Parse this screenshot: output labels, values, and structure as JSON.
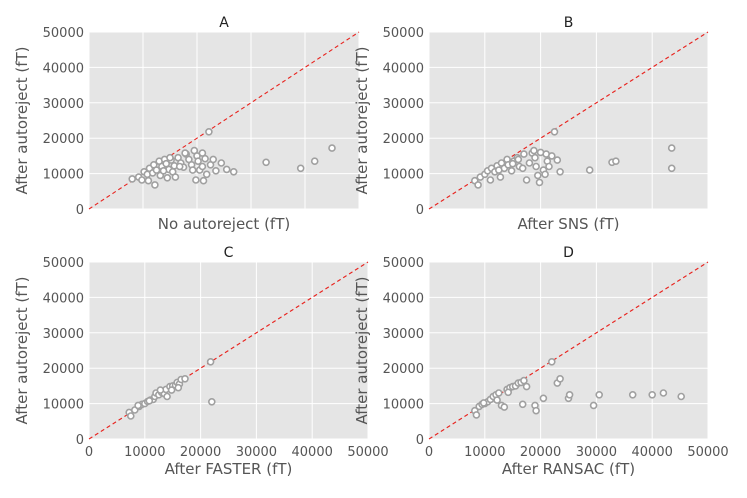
{
  "chart_data": [
    {
      "type": "scatter",
      "title": "A",
      "xlabel": "No autoreject (fT)",
      "ylabel": "After autoreject (fT)",
      "xlim": [
        0,
        50000
      ],
      "ylim": [
        0,
        50000
      ],
      "xticks": [
        0,
        10000,
        20000,
        30000,
        40000,
        50000
      ],
      "yticks": [
        "0",
        "10000",
        "20000",
        "30000",
        "40000",
        "50000"
      ],
      "show_xtick_labels": false,
      "show_ytick_labels": true,
      "reference_line": "y = x",
      "points": [
        [
          8000,
          8500
        ],
        [
          9200,
          9000
        ],
        [
          9800,
          8200
        ],
        [
          10200,
          10500
        ],
        [
          10800,
          9800
        ],
        [
          11200,
          11500
        ],
        [
          11000,
          8000
        ],
        [
          11800,
          10200
        ],
        [
          12000,
          12500
        ],
        [
          12500,
          11000
        ],
        [
          12200,
          6800
        ],
        [
          13000,
          13500
        ],
        [
          13500,
          12000
        ],
        [
          13200,
          9500
        ],
        [
          14000,
          14000
        ],
        [
          14300,
          12800
        ],
        [
          14800,
          11200
        ],
        [
          14500,
          8800
        ],
        [
          15200,
          13800
        ],
        [
          15800,
          12200
        ],
        [
          15500,
          10500
        ],
        [
          16000,
          9000
        ],
        [
          16500,
          14500
        ],
        [
          17000,
          13000
        ],
        [
          17500,
          11800
        ],
        [
          18000,
          15500
        ],
        [
          18500,
          14000
        ],
        [
          19000,
          12500
        ],
        [
          19500,
          16500
        ],
        [
          20000,
          15000
        ],
        [
          20200,
          13500
        ],
        [
          20500,
          11000
        ],
        [
          19800,
          8200
        ],
        [
          21000,
          15800
        ],
        [
          21500,
          14200
        ],
        [
          21000,
          12000
        ],
        [
          21800,
          9800
        ],
        [
          22200,
          21800
        ],
        [
          21200,
          8000
        ],
        [
          22500,
          12500
        ],
        [
          23000,
          14000
        ],
        [
          24500,
          13000
        ],
        [
          25500,
          11200
        ],
        [
          26800,
          10500
        ],
        [
          32800,
          13200
        ],
        [
          39200,
          11500
        ],
        [
          41800,
          13500
        ],
        [
          45000,
          17200
        ],
        [
          16800,
          12000
        ],
        [
          13800,
          10800
        ],
        [
          15000,
          14500
        ],
        [
          17800,
          15800
        ],
        [
          19200,
          11000
        ],
        [
          23500,
          10800
        ]
      ]
    },
    {
      "type": "scatter",
      "title": "B",
      "xlabel": "After SNS (fT)",
      "ylabel": "After autoreject (fT)",
      "xlim": [
        0,
        50000
      ],
      "ylim": [
        0,
        50000
      ],
      "xticks": [
        0,
        10000,
        20000,
        30000,
        40000,
        50000
      ],
      "yticks": [
        "0",
        "10000",
        "20000",
        "30000",
        "40000",
        "50000"
      ],
      "show_xtick_labels": false,
      "show_ytick_labels": true,
      "reference_line": "y = x",
      "points": [
        [
          8200,
          8000
        ],
        [
          8800,
          6800
        ],
        [
          9200,
          9000
        ],
        [
          10000,
          9800
        ],
        [
          10500,
          10800
        ],
        [
          11000,
          8200
        ],
        [
          11200,
          11500
        ],
        [
          11800,
          10500
        ],
        [
          12200,
          12200
        ],
        [
          12800,
          9000
        ],
        [
          13000,
          13000
        ],
        [
          13500,
          11500
        ],
        [
          14000,
          14000
        ],
        [
          14200,
          12500
        ],
        [
          14800,
          10800
        ],
        [
          15200,
          13500
        ],
        [
          15800,
          14500
        ],
        [
          16200,
          12000
        ],
        [
          16800,
          11500
        ],
        [
          17000,
          15500
        ],
        [
          17500,
          8200
        ],
        [
          18000,
          13000
        ],
        [
          18500,
          15800
        ],
        [
          19000,
          14500
        ],
        [
          19200,
          12000
        ],
        [
          19500,
          9500
        ],
        [
          19800,
          7500
        ],
        [
          20000,
          16000
        ],
        [
          20500,
          11000
        ],
        [
          21000,
          15500
        ],
        [
          21200,
          13500
        ],
        [
          21500,
          12000
        ],
        [
          22000,
          15000
        ],
        [
          22500,
          21800
        ],
        [
          23000,
          13800
        ],
        [
          23500,
          10500
        ],
        [
          28800,
          11000
        ],
        [
          32800,
          13200
        ],
        [
          33500,
          13500
        ],
        [
          43500,
          17200
        ],
        [
          43500,
          11500
        ],
        [
          16000,
          14000
        ],
        [
          12500,
          11000
        ],
        [
          15000,
          12800
        ],
        [
          18800,
          16500
        ],
        [
          20800,
          9800
        ]
      ]
    },
    {
      "type": "scatter",
      "title": "C",
      "xlabel": "After FASTER (fT)",
      "ylabel": "After autoreject (fT)",
      "xlim": [
        0,
        50000
      ],
      "ylim": [
        0,
        50000
      ],
      "xticks": [
        "0",
        "10000",
        "20000",
        "30000",
        "40000",
        "50000"
      ],
      "yticks": [
        "0",
        "10000",
        "20000",
        "30000",
        "40000",
        "50000"
      ],
      "show_xtick_labels": true,
      "show_ytick_labels": true,
      "reference_line": "y = x",
      "points": [
        [
          7200,
          7500
        ],
        [
          7500,
          6500
        ],
        [
          8200,
          8200
        ],
        [
          9000,
          9200
        ],
        [
          9500,
          9800
        ],
        [
          10000,
          10000
        ],
        [
          10500,
          10600
        ],
        [
          11000,
          11000
        ],
        [
          11500,
          11200
        ],
        [
          11800,
          12000
        ],
        [
          12000,
          13000
        ],
        [
          12500,
          12500
        ],
        [
          13000,
          13200
        ],
        [
          13500,
          12800
        ],
        [
          13800,
          14000
        ],
        [
          14000,
          12000
        ],
        [
          14500,
          14800
        ],
        [
          15000,
          15000
        ],
        [
          15500,
          15200
        ],
        [
          15800,
          16000
        ],
        [
          16200,
          15500
        ],
        [
          16500,
          16800
        ],
        [
          17200,
          17000
        ],
        [
          21800,
          21800
        ],
        [
          22000,
          10500
        ],
        [
          8800,
          9500
        ],
        [
          10800,
          10800
        ],
        [
          12800,
          13800
        ],
        [
          14800,
          13800
        ],
        [
          16000,
          14500
        ]
      ]
    },
    {
      "type": "scatter",
      "title": "D",
      "xlabel": "After RANSAC (fT)",
      "ylabel": "After autoreject (fT)",
      "xlim": [
        0,
        50000
      ],
      "ylim": [
        0,
        50000
      ],
      "xticks": [
        "0",
        "10000",
        "20000",
        "30000",
        "40000",
        "50000"
      ],
      "yticks": [
        "0",
        "10000",
        "20000",
        "30000",
        "40000",
        "50000"
      ],
      "show_xtick_labels": true,
      "show_ytick_labels": true,
      "reference_line": "y = x",
      "points": [
        [
          8200,
          8000
        ],
        [
          8500,
          6800
        ],
        [
          9000,
          9200
        ],
        [
          9500,
          9800
        ],
        [
          10000,
          10000
        ],
        [
          10500,
          10500
        ],
        [
          11000,
          11200
        ],
        [
          11500,
          12000
        ],
        [
          12000,
          12500
        ],
        [
          12500,
          13000
        ],
        [
          13000,
          9500
        ],
        [
          13500,
          9000
        ],
        [
          14000,
          14000
        ],
        [
          14500,
          14500
        ],
        [
          15000,
          14800
        ],
        [
          15500,
          15000
        ],
        [
          16000,
          15800
        ],
        [
          16500,
          16000
        ],
        [
          16800,
          9800
        ],
        [
          17000,
          16500
        ],
        [
          17500,
          14800
        ],
        [
          19000,
          9500
        ],
        [
          19200,
          8000
        ],
        [
          20500,
          11500
        ],
        [
          22000,
          21800
        ],
        [
          23000,
          15800
        ],
        [
          23500,
          17000
        ],
        [
          25000,
          11500
        ],
        [
          25200,
          12500
        ],
        [
          29500,
          9500
        ],
        [
          30500,
          12500
        ],
        [
          36500,
          12500
        ],
        [
          40000,
          12500
        ],
        [
          42000,
          13000
        ],
        [
          45200,
          12000
        ],
        [
          12200,
          11000
        ],
        [
          14200,
          13200
        ],
        [
          9800,
          10200
        ]
      ]
    }
  ]
}
